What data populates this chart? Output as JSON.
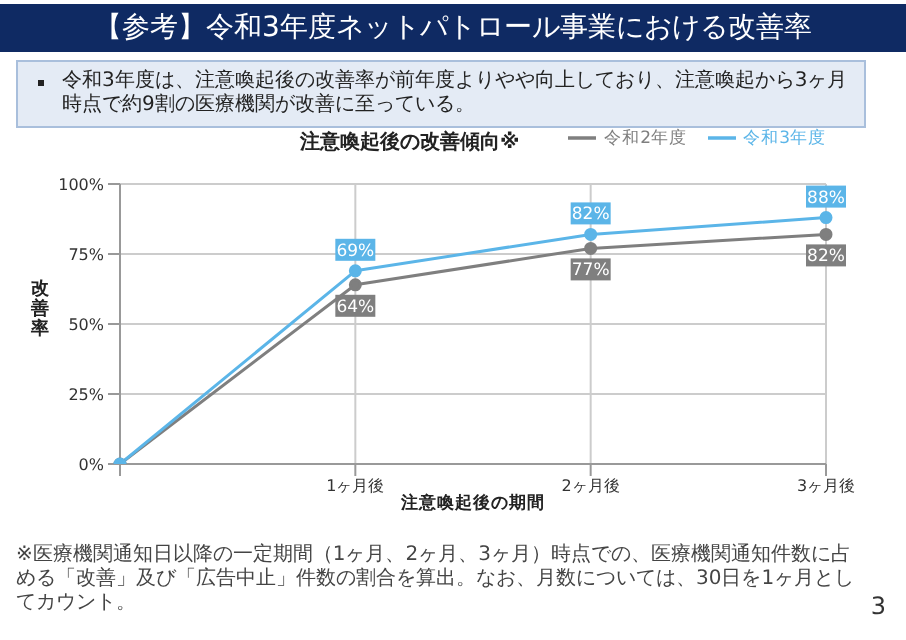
{
  "chart_data": {
    "type": "line",
    "title": "【参考】令和3年度ネットパトロール事業における改善率",
    "subtitle": "令和3年度は、注意喚起後の改善率が前年度よりやや向上しており、注意喚起から3ヶ月時点で約9割の医療機関が改善に至っている。",
    "annotations": [
      "注意喚起後の改善傾向※",
      "※医療機関通知日以降の一定期間（1ヶ月、2ヶ月、3ヶ月）時点での、医療機関通知件数に占める「改善」及び「広告中止」件数の割合を算出。なお、月数については、30日を1ヶ月としてカウント。",
      "3"
    ],
    "categories": [
      null,
      "1ヶ月後",
      "2ヶ月後",
      "3ヶ月後"
    ],
    "xlabel": "注意喚起後の期間",
    "ylabel": "改善率",
    "series": [
      {
        "name": "令和2年度",
        "color": "#7f7f7f",
        "values": [
          0,
          64,
          77,
          82
        ],
        "value_labels": [
          null,
          "64%",
          "77%",
          "82%"
        ]
      },
      {
        "name": "令和3年度",
        "color": "#5bb5e8",
        "values": [
          0,
          69,
          82,
          88
        ],
        "value_labels": [
          null,
          "69%",
          "82%",
          "88%"
        ]
      }
    ],
    "ylim": [
      0,
      100
    ],
    "yticks": [
      {
        "value": 0,
        "label": "0%"
      },
      {
        "value": 25,
        "label": "25%"
      },
      {
        "value": 50,
        "label": "50%"
      },
      {
        "value": 75,
        "label": "75%"
      },
      {
        "value": 100,
        "label": "100%"
      }
    ],
    "grid": true,
    "legend": "top right",
    "marker": "circle",
    "line_style": "solid"
  }
}
